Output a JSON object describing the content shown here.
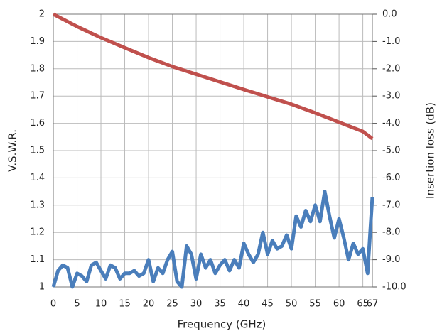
{
  "chart_data": {
    "type": "line",
    "xlabel": "Frequency (GHz)",
    "ylabel": "V.S.W.R.",
    "y2label": "Insertion loss (dB)",
    "xlim": [
      0,
      67
    ],
    "xticks": [
      0,
      5,
      10,
      15,
      20,
      25,
      30,
      35,
      40,
      45,
      50,
      55,
      60,
      65,
      67
    ],
    "ylim": [
      1,
      2
    ],
    "yticks": [
      1,
      1.1,
      1.2,
      1.3,
      1.4,
      1.5,
      1.6,
      1.7,
      1.8,
      1.9,
      2
    ],
    "y2lim": [
      -10,
      0
    ],
    "y2ticks": [
      {
        "value": 0,
        "label": "0.0"
      },
      {
        "value": -1,
        "label": "-1.0"
      },
      {
        "value": -2,
        "label": "-2.0"
      },
      {
        "value": -3,
        "label": "-3.0"
      },
      {
        "value": -4,
        "label": "-4.0"
      },
      {
        "value": -5,
        "label": "-5.0"
      },
      {
        "value": -6,
        "label": "-6.0"
      },
      {
        "value": -7,
        "label": "-7.0"
      },
      {
        "value": -8,
        "label": "-8.0"
      },
      {
        "value": -9,
        "label": "-9.0"
      },
      {
        "value": -10,
        "label": "-10.0"
      }
    ],
    "grid": true,
    "series": [
      {
        "color": "#4a7ebb",
        "axis": "y",
        "x": [
          0,
          1,
          2,
          3,
          4,
          5,
          6,
          7,
          8,
          9,
          10,
          11,
          12,
          13,
          14,
          15,
          16,
          17,
          18,
          19,
          20,
          21,
          22,
          23,
          24,
          25,
          26,
          27,
          28,
          29,
          30,
          31,
          32,
          33,
          34,
          35,
          36,
          37,
          38,
          39,
          40,
          41,
          42,
          43,
          44,
          45,
          46,
          47,
          48,
          49,
          50,
          51,
          52,
          53,
          54,
          55,
          56,
          57,
          58,
          59,
          60,
          61,
          62,
          63,
          64,
          65,
          66,
          67
        ],
        "values": [
          1.0,
          1.06,
          1.08,
          1.07,
          1.0,
          1.05,
          1.04,
          1.02,
          1.08,
          1.09,
          1.06,
          1.03,
          1.08,
          1.07,
          1.03,
          1.05,
          1.05,
          1.06,
          1.04,
          1.05,
          1.1,
          1.02,
          1.07,
          1.05,
          1.1,
          1.13,
          1.02,
          1.0,
          1.15,
          1.12,
          1.03,
          1.12,
          1.07,
          1.1,
          1.05,
          1.08,
          1.1,
          1.06,
          1.1,
          1.07,
          1.16,
          1.12,
          1.09,
          1.12,
          1.2,
          1.12,
          1.17,
          1.14,
          1.15,
          1.19,
          1.14,
          1.26,
          1.22,
          1.28,
          1.24,
          1.3,
          1.24,
          1.35,
          1.26,
          1.18,
          1.25,
          1.18,
          1.1,
          1.16,
          1.12,
          1.14,
          1.05,
          1.33
        ]
      },
      {
        "color": "#c0504d",
        "axis": "y2",
        "x": [
          0,
          5,
          10,
          15,
          20,
          25,
          30,
          35,
          40,
          45,
          50,
          55,
          60,
          65,
          67
        ],
        "values": [
          0,
          -0.45,
          -0.86,
          -1.23,
          -1.59,
          -1.92,
          -2.2,
          -2.48,
          -2.76,
          -3.03,
          -3.3,
          -3.62,
          -3.96,
          -4.3,
          -4.56
        ]
      }
    ]
  }
}
